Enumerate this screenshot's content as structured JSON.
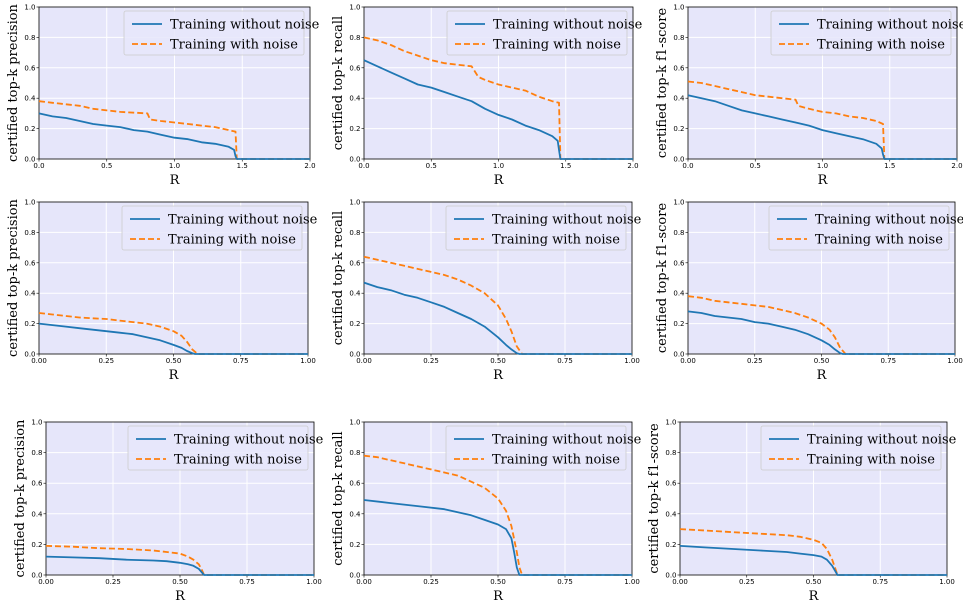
{
  "colors": {
    "background": "#e6e6fa",
    "grid": "#ffffff",
    "without_noise": "#1f77b4",
    "with_noise": "#ff7f0e"
  },
  "legend": [
    "Training without noise",
    "Training with noise"
  ],
  "chart_data": [
    {
      "type": "line",
      "xlabel": "R",
      "ylabel": "certified top-k precision",
      "xlim": [
        0,
        2.0
      ],
      "ylim": [
        0,
        1.0
      ],
      "xticks": [
        "0.0",
        "0.5",
        "1.0",
        "1.5",
        "2.0"
      ],
      "yticks": [
        "0.0",
        "0.2",
        "0.4",
        "0.6",
        "0.8",
        "1.0"
      ],
      "grid": true,
      "legend_loc": "upper right",
      "series": [
        {
          "name": "Training without noise",
          "style": "solid",
          "x": [
            0,
            0.1,
            0.2,
            0.3,
            0.4,
            0.5,
            0.6,
            0.7,
            0.8,
            0.9,
            1.0,
            1.1,
            1.2,
            1.3,
            1.4,
            1.44,
            1.45,
            1.46,
            2.0
          ],
          "y": [
            0.3,
            0.28,
            0.27,
            0.25,
            0.23,
            0.22,
            0.21,
            0.19,
            0.18,
            0.16,
            0.14,
            0.13,
            0.11,
            0.1,
            0.08,
            0.06,
            0.02,
            0.0,
            0.0
          ]
        },
        {
          "name": "Training with noise",
          "style": "dashed",
          "x": [
            0,
            0.1,
            0.2,
            0.3,
            0.4,
            0.5,
            0.6,
            0.8,
            0.82,
            0.9,
            1.0,
            1.1,
            1.2,
            1.3,
            1.4,
            1.45,
            1.46,
            2.0
          ],
          "y": [
            0.38,
            0.37,
            0.36,
            0.35,
            0.33,
            0.32,
            0.31,
            0.3,
            0.26,
            0.25,
            0.24,
            0.23,
            0.22,
            0.21,
            0.19,
            0.18,
            0.0,
            0.0
          ]
        }
      ]
    },
    {
      "type": "line",
      "xlabel": "R",
      "ylabel": "certified top-k recall",
      "xlim": [
        0,
        2.0
      ],
      "ylim": [
        0,
        1.0
      ],
      "xticks": [
        "0.0",
        "0.5",
        "1.0",
        "1.5",
        "2.0"
      ],
      "yticks": [
        "0.0",
        "0.2",
        "0.4",
        "0.6",
        "0.8",
        "1.0"
      ],
      "grid": true,
      "legend_loc": "upper right",
      "series": [
        {
          "name": "Training without noise",
          "style": "solid",
          "x": [
            0,
            0.1,
            0.2,
            0.3,
            0.4,
            0.5,
            0.6,
            0.7,
            0.8,
            0.9,
            1.0,
            1.1,
            1.2,
            1.3,
            1.4,
            1.44,
            1.45,
            1.46,
            2.0
          ],
          "y": [
            0.65,
            0.61,
            0.57,
            0.53,
            0.49,
            0.47,
            0.44,
            0.41,
            0.38,
            0.33,
            0.29,
            0.26,
            0.22,
            0.19,
            0.15,
            0.12,
            0.06,
            0.0,
            0.0
          ]
        },
        {
          "name": "Training with noise",
          "style": "dashed",
          "x": [
            0,
            0.1,
            0.2,
            0.3,
            0.4,
            0.5,
            0.6,
            0.7,
            0.8,
            0.85,
            0.9,
            1.0,
            1.1,
            1.2,
            1.3,
            1.4,
            1.45,
            1.46,
            2.0
          ],
          "y": [
            0.8,
            0.78,
            0.75,
            0.71,
            0.68,
            0.65,
            0.63,
            0.62,
            0.61,
            0.54,
            0.52,
            0.49,
            0.47,
            0.45,
            0.41,
            0.38,
            0.37,
            0.0,
            0.0
          ]
        }
      ]
    },
    {
      "type": "line",
      "xlabel": "R",
      "ylabel": "certified top-k f1-score",
      "xlim": [
        0,
        2.0
      ],
      "ylim": [
        0,
        1.0
      ],
      "xticks": [
        "0.0",
        "0.5",
        "1.0",
        "1.5",
        "2.0"
      ],
      "yticks": [
        "0.0",
        "0.2",
        "0.4",
        "0.6",
        "0.8",
        "1.0"
      ],
      "grid": true,
      "legend_loc": "upper right",
      "series": [
        {
          "name": "Training without noise",
          "style": "solid",
          "x": [
            0,
            0.1,
            0.2,
            0.3,
            0.4,
            0.5,
            0.6,
            0.7,
            0.8,
            0.9,
            1.0,
            1.1,
            1.2,
            1.3,
            1.4,
            1.44,
            1.45,
            1.46,
            2.0
          ],
          "y": [
            0.42,
            0.4,
            0.38,
            0.35,
            0.32,
            0.3,
            0.28,
            0.26,
            0.24,
            0.22,
            0.19,
            0.17,
            0.15,
            0.13,
            0.1,
            0.07,
            0.03,
            0.0,
            0.0
          ]
        },
        {
          "name": "Training with noise",
          "style": "dashed",
          "x": [
            0,
            0.1,
            0.2,
            0.3,
            0.4,
            0.5,
            0.6,
            0.8,
            0.82,
            0.9,
            1.0,
            1.1,
            1.2,
            1.3,
            1.4,
            1.45,
            1.46,
            2.0
          ],
          "y": [
            0.51,
            0.5,
            0.48,
            0.46,
            0.44,
            0.42,
            0.41,
            0.39,
            0.35,
            0.33,
            0.31,
            0.3,
            0.28,
            0.27,
            0.25,
            0.23,
            0.0,
            0.0
          ]
        }
      ]
    },
    {
      "type": "line",
      "xlabel": "R",
      "ylabel": "certified top-k precision",
      "xlim": [
        0,
        1.0
      ],
      "ylim": [
        0,
        1.0
      ],
      "xticks": [
        "0.00",
        "0.25",
        "0.50",
        "0.75",
        "1.00"
      ],
      "yticks": [
        "0.0",
        "0.2",
        "0.4",
        "0.6",
        "0.8",
        "1.0"
      ],
      "grid": true,
      "legend_loc": "upper right",
      "series": [
        {
          "name": "Training without noise",
          "style": "solid",
          "x": [
            0,
            0.05,
            0.1,
            0.15,
            0.2,
            0.25,
            0.3,
            0.35,
            0.4,
            0.45,
            0.5,
            0.53,
            0.55,
            0.57,
            0.58,
            1.0
          ],
          "y": [
            0.2,
            0.19,
            0.18,
            0.17,
            0.16,
            0.15,
            0.14,
            0.13,
            0.11,
            0.09,
            0.06,
            0.04,
            0.02,
            0.005,
            0.0,
            0.0
          ]
        },
        {
          "name": "Training with noise",
          "style": "dashed",
          "x": [
            0,
            0.05,
            0.1,
            0.15,
            0.2,
            0.25,
            0.3,
            0.35,
            0.4,
            0.45,
            0.5,
            0.53,
            0.55,
            0.57,
            0.59,
            1.0
          ],
          "y": [
            0.27,
            0.26,
            0.25,
            0.24,
            0.235,
            0.23,
            0.22,
            0.21,
            0.2,
            0.18,
            0.15,
            0.12,
            0.08,
            0.03,
            0.0,
            0.0
          ]
        }
      ]
    },
    {
      "type": "line",
      "xlabel": "R",
      "ylabel": "certified top-k recall",
      "xlim": [
        0,
        1.0
      ],
      "ylim": [
        0,
        1.0
      ],
      "xticks": [
        "0.00",
        "0.25",
        "0.50",
        "0.75",
        "1.00"
      ],
      "yticks": [
        "0.0",
        "0.2",
        "0.4",
        "0.6",
        "0.8",
        "1.0"
      ],
      "grid": true,
      "legend_loc": "upper right",
      "series": [
        {
          "name": "Training without noise",
          "style": "solid",
          "x": [
            0,
            0.05,
            0.1,
            0.15,
            0.2,
            0.25,
            0.3,
            0.35,
            0.4,
            0.45,
            0.5,
            0.53,
            0.55,
            0.57,
            0.58,
            1.0
          ],
          "y": [
            0.47,
            0.44,
            0.42,
            0.39,
            0.37,
            0.34,
            0.31,
            0.27,
            0.23,
            0.18,
            0.11,
            0.06,
            0.03,
            0.005,
            0.0,
            0.0
          ]
        },
        {
          "name": "Training with noise",
          "style": "dashed",
          "x": [
            0,
            0.05,
            0.1,
            0.15,
            0.2,
            0.25,
            0.3,
            0.35,
            0.4,
            0.45,
            0.5,
            0.53,
            0.55,
            0.57,
            0.59,
            1.0
          ],
          "y": [
            0.64,
            0.62,
            0.6,
            0.58,
            0.56,
            0.54,
            0.52,
            0.49,
            0.45,
            0.4,
            0.32,
            0.23,
            0.15,
            0.05,
            0.0,
            0.0
          ]
        }
      ]
    },
    {
      "type": "line",
      "xlabel": "R",
      "ylabel": "certified top-k f1-score",
      "xlim": [
        0,
        1.0
      ],
      "ylim": [
        0,
        1.0
      ],
      "xticks": [
        "0.00",
        "0.25",
        "0.50",
        "0.75",
        "1.00"
      ],
      "yticks": [
        "0.0",
        "0.2",
        "0.4",
        "0.6",
        "0.8",
        "1.0"
      ],
      "grid": true,
      "legend_loc": "upper right",
      "series": [
        {
          "name": "Training without noise",
          "style": "solid",
          "x": [
            0,
            0.05,
            0.1,
            0.15,
            0.2,
            0.25,
            0.3,
            0.35,
            0.4,
            0.45,
            0.5,
            0.53,
            0.55,
            0.57,
            0.58,
            1.0
          ],
          "y": [
            0.28,
            0.27,
            0.25,
            0.24,
            0.23,
            0.21,
            0.2,
            0.18,
            0.16,
            0.13,
            0.09,
            0.06,
            0.03,
            0.005,
            0.0,
            0.0
          ]
        },
        {
          "name": "Training with noise",
          "style": "dashed",
          "x": [
            0,
            0.05,
            0.1,
            0.15,
            0.2,
            0.25,
            0.3,
            0.35,
            0.4,
            0.45,
            0.5,
            0.53,
            0.55,
            0.57,
            0.59,
            1.0
          ],
          "y": [
            0.38,
            0.37,
            0.35,
            0.34,
            0.33,
            0.32,
            0.31,
            0.29,
            0.27,
            0.24,
            0.2,
            0.16,
            0.11,
            0.04,
            0.0,
            0.0
          ]
        }
      ]
    },
    {
      "type": "line",
      "xlabel": "R",
      "ylabel": "certified top-k precision",
      "xlim": [
        0,
        1.0
      ],
      "ylim": [
        0,
        1.0
      ],
      "xticks": [
        "0.00",
        "0.25",
        "0.50",
        "0.75",
        "1.00"
      ],
      "yticks": [
        "0.0",
        "0.2",
        "0.4",
        "0.6",
        "0.8",
        "1.0"
      ],
      "grid": true,
      "legend_loc": "upper right",
      "series": [
        {
          "name": "Training without noise",
          "style": "solid",
          "x": [
            0,
            0.1,
            0.2,
            0.3,
            0.4,
            0.45,
            0.5,
            0.53,
            0.55,
            0.57,
            0.58,
            0.59,
            1.0
          ],
          "y": [
            0.12,
            0.115,
            0.11,
            0.1,
            0.095,
            0.09,
            0.08,
            0.07,
            0.06,
            0.04,
            0.02,
            0.0,
            0.0
          ]
        },
        {
          "name": "Training with noise",
          "style": "dashed",
          "x": [
            0,
            0.1,
            0.2,
            0.3,
            0.4,
            0.45,
            0.5,
            0.53,
            0.55,
            0.57,
            0.58,
            0.59,
            1.0
          ],
          "y": [
            0.19,
            0.185,
            0.175,
            0.17,
            0.16,
            0.15,
            0.14,
            0.12,
            0.1,
            0.07,
            0.04,
            0.0,
            0.0
          ]
        }
      ]
    },
    {
      "type": "line",
      "xlabel": "R",
      "ylabel": "certified top-k recall",
      "xlim": [
        0,
        1.0
      ],
      "ylim": [
        0,
        1.0
      ],
      "xticks": [
        "0.00",
        "0.25",
        "0.50",
        "0.75",
        "1.00"
      ],
      "yticks": [
        "0.0",
        "0.2",
        "0.4",
        "0.6",
        "0.8",
        "1.0"
      ],
      "grid": true,
      "legend_loc": "upper right",
      "series": [
        {
          "name": "Training without noise",
          "style": "solid",
          "x": [
            0,
            0.1,
            0.2,
            0.3,
            0.35,
            0.4,
            0.45,
            0.5,
            0.53,
            0.55,
            0.56,
            0.57,
            0.58,
            1.0
          ],
          "y": [
            0.49,
            0.47,
            0.45,
            0.43,
            0.41,
            0.39,
            0.36,
            0.33,
            0.3,
            0.24,
            0.15,
            0.05,
            0.0,
            0.0
          ]
        },
        {
          "name": "Training with noise",
          "style": "dashed",
          "x": [
            0,
            0.05,
            0.1,
            0.15,
            0.2,
            0.25,
            0.3,
            0.35,
            0.4,
            0.45,
            0.5,
            0.53,
            0.55,
            0.57,
            0.58,
            0.59,
            1.0
          ],
          "y": [
            0.78,
            0.77,
            0.75,
            0.73,
            0.71,
            0.69,
            0.67,
            0.65,
            0.61,
            0.57,
            0.5,
            0.42,
            0.32,
            0.15,
            0.05,
            0.0,
            0.0
          ]
        }
      ]
    },
    {
      "type": "line",
      "xlabel": "R",
      "ylabel": "certified top-k f1-score",
      "xlim": [
        0,
        1.0
      ],
      "ylim": [
        0,
        1.0
      ],
      "xticks": [
        "0.00",
        "0.25",
        "0.50",
        "0.75",
        "1.00"
      ],
      "yticks": [
        "0.0",
        "0.2",
        "0.4",
        "0.6",
        "0.8",
        "1.0"
      ],
      "grid": true,
      "legend_loc": "upper right",
      "series": [
        {
          "name": "Training without noise",
          "style": "solid",
          "x": [
            0,
            0.1,
            0.2,
            0.3,
            0.4,
            0.45,
            0.5,
            0.53,
            0.55,
            0.57,
            0.58,
            0.59,
            1.0
          ],
          "y": [
            0.19,
            0.18,
            0.17,
            0.16,
            0.15,
            0.14,
            0.13,
            0.12,
            0.1,
            0.06,
            0.03,
            0.0,
            0.0
          ]
        },
        {
          "name": "Training with noise",
          "style": "dashed",
          "x": [
            0,
            0.1,
            0.2,
            0.3,
            0.4,
            0.45,
            0.5,
            0.53,
            0.55,
            0.57,
            0.58,
            0.59,
            1.0
          ],
          "y": [
            0.3,
            0.29,
            0.28,
            0.27,
            0.26,
            0.25,
            0.23,
            0.21,
            0.17,
            0.1,
            0.05,
            0.0,
            0.0
          ]
        }
      ]
    }
  ]
}
